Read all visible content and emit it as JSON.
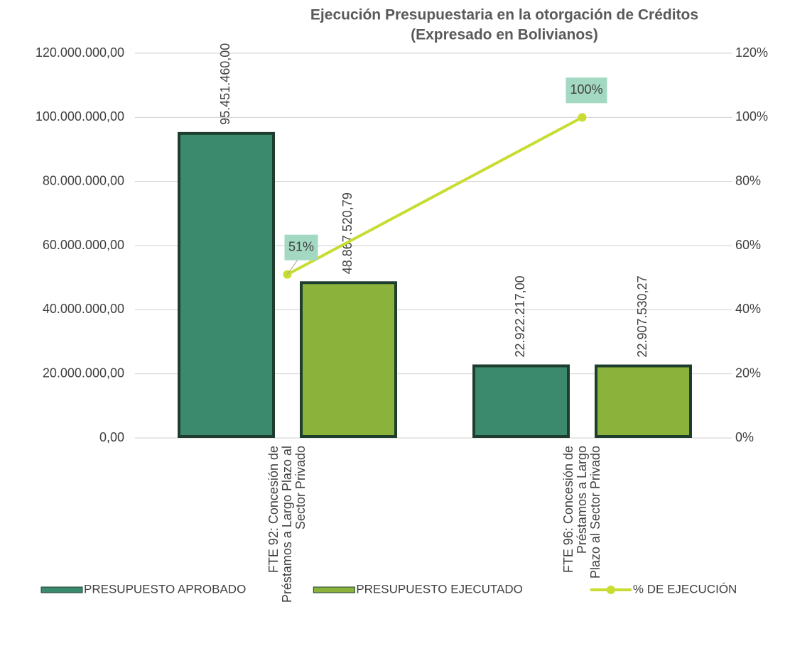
{
  "chart_data": {
    "type": "bar",
    "title": "Ejecución Presupuestaria en la otorgación de Créditos",
    "subtitle": "(Expresado en Bolivianos)",
    "categories": [
      "FTE 92: Concesión de Préstamos a Largo Plazo al Sector Privado",
      "FTE 96: Concesión de Préstamos a Largo Plazo al Sector Privado"
    ],
    "series": [
      {
        "name": "PRESUPUESTO APROBADO",
        "type": "bar",
        "color": "#3b8a6d",
        "values": [
          95451460,
          22922217
        ],
        "value_labels": [
          "95.451.460,00",
          "22.922.217,00"
        ]
      },
      {
        "name": "PRESUPUESTO EJECUTADO",
        "type": "bar",
        "color": "#8bb23a",
        "values": [
          48867520.79,
          22907530.27
        ],
        "value_labels": [
          "48.867.520,79",
          "22.907.530,27"
        ]
      },
      {
        "name": "% DE EJECUCIÓN",
        "type": "line",
        "axis": "y2",
        "color": "#c8dc32",
        "values": [
          51,
          100
        ],
        "value_labels": [
          "51%",
          "100%"
        ]
      }
    ],
    "ylim": [
      0,
      120000000
    ],
    "yticks": [
      {
        "value": 0,
        "label": "0,00"
      },
      {
        "value": 20000000,
        "label": "20.000.000,00"
      },
      {
        "value": 40000000,
        "label": "40.000.000,00"
      },
      {
        "value": 60000000,
        "label": "60.000.000,00"
      },
      {
        "value": 80000000,
        "label": "80.000.000,00"
      },
      {
        "value": 100000000,
        "label": "100.000.000,00"
      },
      {
        "value": 120000000,
        "label": "120.000.000,00"
      }
    ],
    "y2lim": [
      0,
      120
    ],
    "y2ticks": [
      {
        "value": 0,
        "label": "0%"
      },
      {
        "value": 20,
        "label": "20%"
      },
      {
        "value": 40,
        "label": "40%"
      },
      {
        "value": 60,
        "label": "60%"
      },
      {
        "value": 80,
        "label": "80%"
      },
      {
        "value": 100,
        "label": "100%"
      },
      {
        "value": 120,
        "label": "120%"
      }
    ],
    "grid": true,
    "legend": "bottom"
  }
}
